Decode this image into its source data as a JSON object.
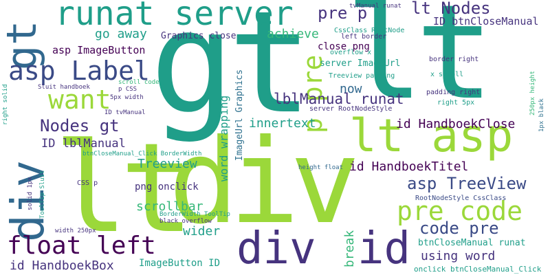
{
  "palette": {
    "green": "#9bd83a",
    "teal": "#1f9e89",
    "blue": "#31688e",
    "navy": "#3a4a86",
    "purple": "#440154",
    "violet": "#46337e",
    "mint": "#35b779",
    "steel": "#2d708e"
  },
  "words": [
    {
      "text": "gt",
      "color": "teal",
      "vertical": false
    },
    {
      "text": "lt",
      "color": "teal",
      "vertical": false
    },
    {
      "text": "lt",
      "color": "green",
      "vertical": false
    },
    {
      "text": "div",
      "color": "green",
      "vertical": false
    },
    {
      "text": "div",
      "color": "blue",
      "vertical": true
    },
    {
      "text": "gt",
      "color": "blue",
      "vertical": true
    },
    {
      "text": "runat server",
      "color": "teal",
      "vertical": false
    },
    {
      "text": "lt asp",
      "color": "green",
      "vertical": false
    },
    {
      "text": "asp Label",
      "color": "navy",
      "vertical": false
    },
    {
      "text": "want",
      "color": "green",
      "vertical": false
    },
    {
      "text": "div",
      "color": "violet",
      "vertical": false
    },
    {
      "text": "id",
      "color": "violet",
      "vertical": false
    },
    {
      "text": "float left",
      "color": "purple",
      "vertical": false
    },
    {
      "text": "pre code",
      "color": "green",
      "vertical": false
    },
    {
      "text": "Nodes gt",
      "color": "violet",
      "vertical": false
    },
    {
      "text": "lt Nodes",
      "color": "violet",
      "vertical": false
    },
    {
      "text": "pre p",
      "color": "violet",
      "vertical": false
    },
    {
      "text": "asp TreeView",
      "color": "navy",
      "vertical": false
    },
    {
      "text": "code pre",
      "color": "navy",
      "vertical": false
    },
    {
      "text": "p pre",
      "color": "green",
      "vertical": true
    },
    {
      "text": "id HandboekClose",
      "color": "purple",
      "vertical": false
    },
    {
      "text": "lblManual runat",
      "color": "violet",
      "vertical": false
    },
    {
      "text": "id HandboekTitel",
      "color": "purple",
      "vertical": false
    },
    {
      "text": "id HandboekBox",
      "color": "violet",
      "vertical": false
    },
    {
      "text": "go away",
      "color": "teal",
      "vertical": false
    },
    {
      "text": "asp ImageButton",
      "color": "purple",
      "vertical": false
    },
    {
      "text": "achieve",
      "color": "mint",
      "vertical": false
    },
    {
      "text": "now",
      "color": "blue",
      "vertical": false
    },
    {
      "text": "innertext",
      "color": "teal",
      "vertical": false
    },
    {
      "text": "Treeview",
      "color": "teal",
      "vertical": false
    },
    {
      "text": "scrollbar",
      "color": "mint",
      "vertical": false
    },
    {
      "text": "wider",
      "color": "teal",
      "vertical": false
    },
    {
      "text": "using word",
      "color": "violet",
      "vertical": false
    },
    {
      "text": "ID lblManual",
      "color": "violet",
      "vertical": false
    },
    {
      "text": "ID btnCloseManual",
      "color": "violet",
      "vertical": false
    },
    {
      "text": "close png",
      "color": "purple",
      "vertical": false
    },
    {
      "text": "server ImageUrl",
      "color": "teal",
      "vertical": false
    },
    {
      "text": "word wrapping",
      "color": "teal",
      "vertical": true
    },
    {
      "text": "ImageUrl Graphics",
      "color": "steel",
      "vertical": true
    },
    {
      "text": "Graphics close",
      "color": "violet",
      "vertical": false
    },
    {
      "text": "png onclick",
      "color": "violet",
      "vertical": false
    },
    {
      "text": "ImageButton ID",
      "color": "teal",
      "vertical": false
    },
    {
      "text": "btnCloseManual runat",
      "color": "teal",
      "vertical": false
    },
    {
      "text": "break",
      "color": "mint",
      "vertical": true
    },
    {
      "text": "onclick btnCloseManual_Click",
      "color": "teal",
      "vertical": false
    },
    {
      "text": "RootNodeStyle CssClass",
      "color": "navy",
      "vertical": false
    },
    {
      "text": "server RootNodeStyle",
      "color": "violet",
      "vertical": false
    },
    {
      "text": "Treeview padding",
      "color": "teal",
      "vertical": false
    },
    {
      "text": "tvManual runat",
      "color": "violet",
      "vertical": false
    },
    {
      "text": "CssClass RootNode",
      "color": "teal",
      "vertical": false
    },
    {
      "text": "left border",
      "color": "violet",
      "vertical": false
    },
    {
      "text": "overflow x",
      "color": "teal",
      "vertical": false
    },
    {
      "text": "border right",
      "color": "violet",
      "vertical": false
    },
    {
      "text": "x scroll",
      "color": "teal",
      "vertical": false
    },
    {
      "text": "padding right",
      "color": "violet",
      "vertical": false
    },
    {
      "text": "right 5px",
      "color": "teal",
      "vertical": false
    },
    {
      "text": "250px height",
      "color": "mint",
      "vertical": true
    },
    {
      "text": "1px black",
      "color": "steel",
      "vertical": true
    },
    {
      "text": "height float",
      "color": "blue",
      "vertical": false
    },
    {
      "text": "CSS p",
      "color": "violet",
      "vertical": false
    },
    {
      "text": "BorderWidth ToolTip",
      "color": "teal",
      "vertical": false
    },
    {
      "text": "black overflow",
      "color": "violet",
      "vertical": false
    },
    {
      "text": "width 250px",
      "color": "violet",
      "vertical": false
    },
    {
      "text": "btnCloseManual_Click BorderWidth",
      "color": "teal",
      "vertical": false
    },
    {
      "text": "ToolTip Sluit",
      "color": "teal",
      "vertical": true
    },
    {
      "text": "solid 1px",
      "color": "violet",
      "vertical": true
    },
    {
      "text": "right solid",
      "color": "teal",
      "vertical": true
    },
    {
      "text": "Sluit handboek",
      "color": "violet",
      "vertical": false
    },
    {
      "text": "scroll code",
      "color": "mint",
      "vertical": false
    },
    {
      "text": "p CSS",
      "color": "violet",
      "vertical": false
    },
    {
      "text": "5px width",
      "color": "violet",
      "vertical": false
    },
    {
      "text": "ID tvManual",
      "color": "violet",
      "vertical": false
    }
  ]
}
